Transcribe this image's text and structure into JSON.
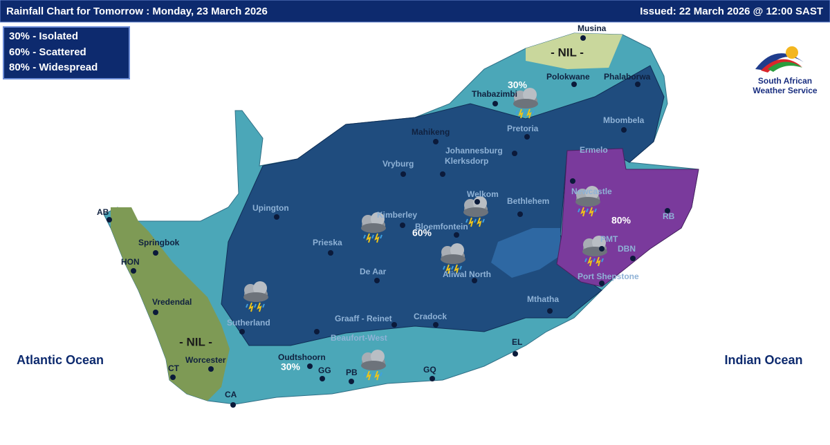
{
  "header": {
    "title": "Rainfall Chart for Tomorrow : Monday, 23 March 2026",
    "issued": "Issued: 22 March 2026 @ 12:00 SAST"
  },
  "legend": {
    "items": [
      "30% - Isolated",
      "60% - Scattered",
      "80% - Widespread"
    ]
  },
  "logo": {
    "lines": [
      "South African",
      "Weather Service"
    ]
  },
  "oceans": [
    "Atlantic Ocean",
    "Indian Ocean"
  ],
  "zones": {
    "nil_north": "- NIL -",
    "nil_west": "- NIL -",
    "isolated_north": "30%",
    "isolated_south": "30%",
    "scattered": "60%",
    "widespread": "80%"
  },
  "places": [
    "Musina",
    "Polokwane",
    "Phalaborwa",
    "Thabazimbi",
    "Mahikeng",
    "Pretoria",
    "Mbombela",
    "Johannesburg",
    "Klerksdorp",
    "Vryburg",
    "Ermelo",
    "Newcastle",
    "Welkom",
    "Bethlehem",
    "Upington",
    "Kimberley",
    "Bloemfontein",
    "RB",
    "Prieska",
    "AB",
    "Springbok",
    "HON",
    "De Aar",
    "Aliwal North",
    "PMT",
    "DBN",
    "Port Shepstone",
    "Vredendal",
    "Mthatha",
    "Sutherland",
    "Graaff - Reinet",
    "Cradock",
    "Beaufort-West",
    "EL",
    "Worcester",
    "Oudtshoorn",
    "CT",
    "GG",
    "PB",
    "GQ",
    "CA"
  ]
}
